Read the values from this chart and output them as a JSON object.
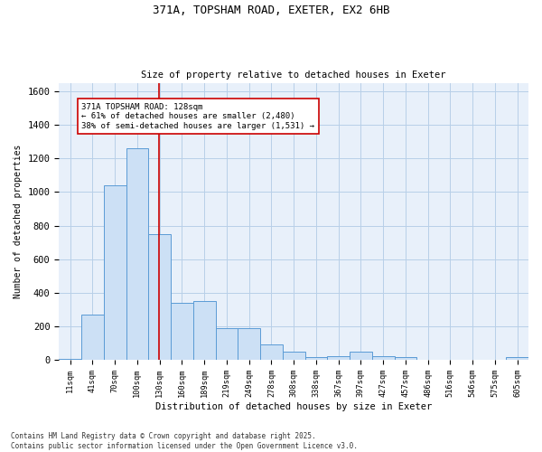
{
  "title_line1": "371A, TOPSHAM ROAD, EXETER, EX2 6HB",
  "title_line2": "Size of property relative to detached houses in Exeter",
  "xlabel": "Distribution of detached houses by size in Exeter",
  "ylabel": "Number of detached properties",
  "bar_color": "#cce0f5",
  "bar_edge_color": "#5b9bd5",
  "grid_color": "#b8cfe8",
  "background_color": "#e8f0fa",
  "categories": [
    "11sqm",
    "41sqm",
    "70sqm",
    "100sqm",
    "130sqm",
    "160sqm",
    "189sqm",
    "219sqm",
    "249sqm",
    "278sqm",
    "308sqm",
    "338sqm",
    "367sqm",
    "397sqm",
    "427sqm",
    "457sqm",
    "486sqm",
    "516sqm",
    "546sqm",
    "575sqm",
    "605sqm"
  ],
  "values": [
    5,
    270,
    1040,
    1260,
    750,
    340,
    350,
    190,
    190,
    95,
    50,
    20,
    25,
    50,
    25,
    20,
    0,
    0,
    0,
    0,
    15
  ],
  "ylim": [
    0,
    1650
  ],
  "yticks": [
    0,
    200,
    400,
    600,
    800,
    1000,
    1200,
    1400,
    1600
  ],
  "property_line_x": 3.97,
  "annotation_text": "371A TOPSHAM ROAD: 128sqm\n← 61% of detached houses are smaller (2,480)\n38% of semi-detached houses are larger (1,531) →",
  "annotation_box_facecolor": "#ffffff",
  "annotation_box_edgecolor": "#cc0000",
  "red_line_color": "#cc0000",
  "footnote": "Contains HM Land Registry data © Crown copyright and database right 2025.\nContains public sector information licensed under the Open Government Licence v3.0."
}
